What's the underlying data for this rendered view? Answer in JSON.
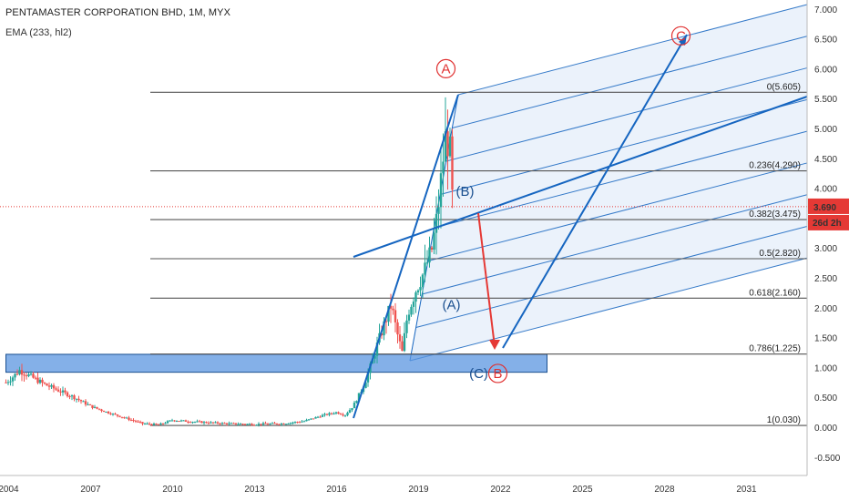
{
  "header": {
    "title": "PENTAMASTER CORPORATION BHD, 1M, MYX",
    "indicator": "EMA (233, hl2)"
  },
  "price_axis": {
    "ticks": [
      "7.000",
      "6.500",
      "6.000",
      "5.500",
      "5.000",
      "4.500",
      "4.000",
      "3.500",
      "3.000",
      "2.500",
      "2.000",
      "1.500",
      "1.000",
      "0.500",
      "0.000",
      "-0.500"
    ],
    "current_price": "3.690",
    "countdown": "26d 2h"
  },
  "colors": {
    "price_badge": "#e53935",
    "countdown_badge": "#e53935",
    "trend_line": "#1565c0",
    "channel_fill": "#dbe8f8",
    "support_zone": "#5b95e0",
    "fib_line": "#555555",
    "arrow_down": "#e53935",
    "up_candle": "#26a69a",
    "down_candle": "#ef5350"
  },
  "chart_data": {
    "type": "candlestick",
    "title": "PENTAMASTER CORPORATION BHD, 1M, MYX",
    "indicator": "EMA (233, hl2)",
    "x_ticks": [
      "2004",
      "2007",
      "2010",
      "2013",
      "2016",
      "2019",
      "2022",
      "2025",
      "2028",
      "2031"
    ],
    "y_range": [
      -0.6,
      7.05
    ],
    "current_price": 3.69,
    "price_path": [
      [
        2003.9,
        0.75
      ],
      [
        2004.1,
        0.82
      ],
      [
        2004.4,
        0.95
      ],
      [
        2004.8,
        0.85
      ],
      [
        2005.3,
        0.72
      ],
      [
        2005.8,
        0.62
      ],
      [
        2006.4,
        0.5
      ],
      [
        2007.0,
        0.35
      ],
      [
        2007.6,
        0.25
      ],
      [
        2008.3,
        0.15
      ],
      [
        2008.9,
        0.06
      ],
      [
        2009.5,
        0.04
      ],
      [
        2010.0,
        0.12
      ],
      [
        2010.5,
        0.1
      ],
      [
        2011.2,
        0.08
      ],
      [
        2012.0,
        0.06
      ],
      [
        2013.0,
        0.05
      ],
      [
        2014.0,
        0.06
      ],
      [
        2014.8,
        0.1
      ],
      [
        2015.5,
        0.2
      ],
      [
        2016.0,
        0.25
      ],
      [
        2016.3,
        0.2
      ],
      [
        2016.6,
        0.35
      ],
      [
        2017.0,
        0.7
      ],
      [
        2017.3,
        1.1
      ],
      [
        2017.5,
        1.4
      ],
      [
        2017.8,
        1.8
      ],
      [
        2018.0,
        2.05
      ],
      [
        2018.2,
        1.6
      ],
      [
        2018.4,
        1.25
      ],
      [
        2018.6,
        1.9
      ],
      [
        2018.9,
        2.3
      ],
      [
        2019.2,
        2.6
      ],
      [
        2019.5,
        3.0
      ],
      [
        2019.7,
        3.6
      ],
      [
        2019.9,
        4.5
      ],
      [
        2020.0,
        4.9
      ],
      [
        2020.15,
        4.6
      ],
      [
        2020.25,
        3.69
      ]
    ],
    "fibonacci": [
      {
        "ratio": "0",
        "price": 5.605,
        "label": "0(5.605)"
      },
      {
        "ratio": "0.236",
        "price": 4.29,
        "label": "0.236(4.290)"
      },
      {
        "ratio": "0.382",
        "price": 3.475,
        "label": "0.382(3.475)"
      },
      {
        "ratio": "0.5",
        "price": 2.82,
        "label": "0.5(2.820)"
      },
      {
        "ratio": "0.618",
        "price": 2.16,
        "label": "0.618(2.160)"
      },
      {
        "ratio": "0.786",
        "price": 1.225,
        "label": "0.786(1.225)"
      },
      {
        "ratio": "1",
        "price": 0.03,
        "label": "1(0.030)"
      }
    ],
    "wave_labels": [
      {
        "text": "A",
        "style": "circled-red",
        "year": 2020.0,
        "price": 6.0
      },
      {
        "text": "C",
        "style": "circled-red",
        "year": 2028.6,
        "price": 6.55
      },
      {
        "text": "(B)",
        "style": "blue",
        "year": 2020.7,
        "price": 3.95
      },
      {
        "text": "(A)",
        "style": "blue",
        "year": 2020.2,
        "price": 2.05
      },
      {
        "text": "(C)",
        "style": "blue",
        "year": 2021.2,
        "price": 0.9
      },
      {
        "text": "B",
        "style": "circled-red",
        "year": 2021.9,
        "price": 0.9
      }
    ],
    "support_zone": {
      "x_start": 2003.9,
      "x_end": 2023.7,
      "price_low": 0.92,
      "price_high": 1.22
    }
  }
}
